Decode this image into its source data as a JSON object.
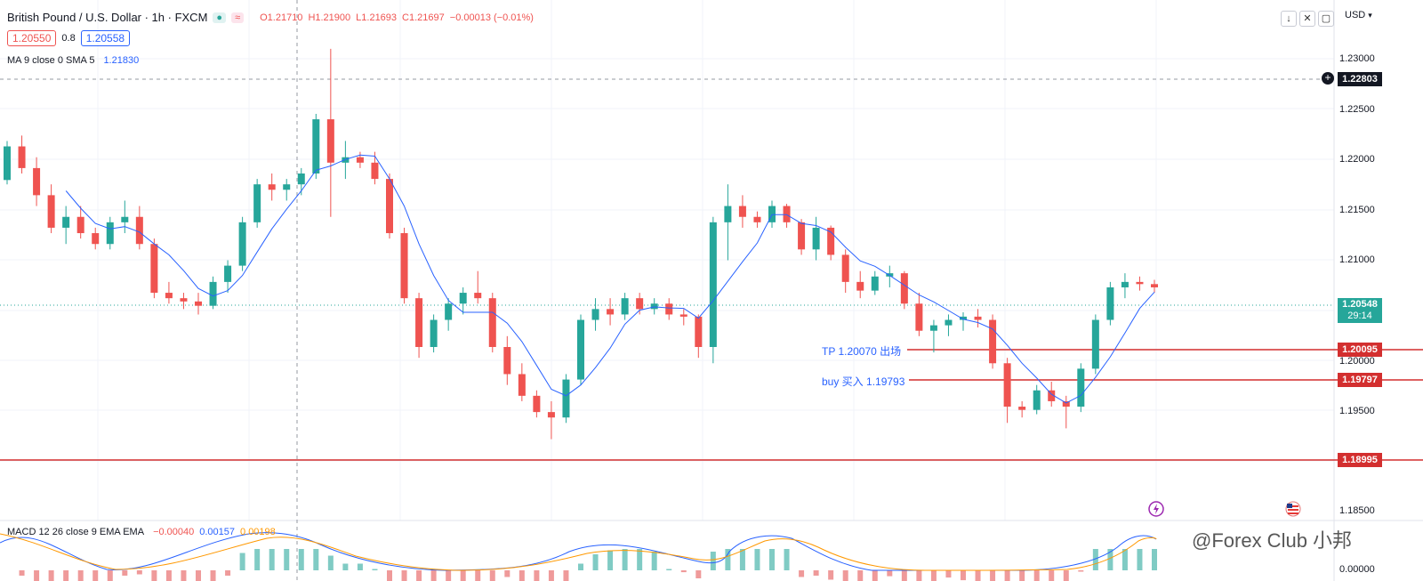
{
  "header": {
    "symbol": "British Pound / U.S. Dollar · 1h · FXCM",
    "ohlc_open": "O1.21710",
    "ohlc_high": "H1.21900",
    "ohlc_low": "L1.21693",
    "ohlc_close": "C1.21697",
    "ohlc_change": "−0.00013 (−0.01%)",
    "bid": "1.20550",
    "spread": "0.8",
    "ask": "1.20558",
    "currency": "USD"
  },
  "indicators": {
    "ma_label": "MA 9 close 0 SMA 5",
    "ma_value": "1.21830",
    "macd_label": "MACD 12 26 close 9 EMA EMA",
    "macd_hist": "−0.00040",
    "macd_line": "0.00157",
    "macd_signal": "0.00198"
  },
  "price_axis": {
    "ticks": [
      "1.23000",
      "1.22500",
      "1.22000",
      "1.21500",
      "1.21000",
      "1.20000",
      "1.19500",
      "1.18500"
    ],
    "macd_tick": "0.00000"
  },
  "tags": {
    "crosshair": "1.22803",
    "last_price": "1.20548",
    "countdown": "29:14",
    "tp_line": "1.20095",
    "buy_line": "1.19797",
    "low_line": "1.18995"
  },
  "annotations": {
    "tp": "TP 1.20070 出场",
    "buy": "buy 买入 1.19793"
  },
  "watermark": "@Forex Club 小邦",
  "colors": {
    "up": "#26a69a",
    "down": "#ef5350",
    "ma": "#2962ff",
    "signal": "#ff9800",
    "hline": "#d32f2f"
  },
  "chart_data": {
    "type": "candlestick",
    "series": [
      {
        "name": "GBP/USD 1h",
        "ohlc": [
          [
            1.2154,
            1.219,
            1.215,
            1.2185
          ],
          [
            1.2185,
            1.2195,
            1.216,
            1.2165
          ],
          [
            1.2165,
            1.2175,
            1.213,
            1.214
          ],
          [
            1.214,
            1.215,
            1.2105,
            1.211
          ],
          [
            1.211,
            1.213,
            1.2095,
            1.212
          ],
          [
            1.212,
            1.213,
            1.21,
            1.2105
          ],
          [
            1.2105,
            1.211,
            1.209,
            1.2095
          ],
          [
            1.2095,
            1.212,
            1.209,
            1.2115
          ],
          [
            1.2115,
            1.2135,
            1.2105,
            1.212
          ],
          [
            1.212,
            1.213,
            1.209,
            1.2095
          ],
          [
            1.2095,
            1.21,
            1.2045,
            1.205
          ],
          [
            1.205,
            1.206,
            1.204,
            1.2045
          ],
          [
            1.2045,
            1.205,
            1.2035,
            1.2042
          ],
          [
            1.2042,
            1.205,
            1.203,
            1.2038
          ],
          [
            1.2038,
            1.2065,
            1.2035,
            1.206
          ],
          [
            1.206,
            1.208,
            1.205,
            1.2075
          ],
          [
            1.2075,
            1.212,
            1.207,
            1.2115
          ],
          [
            1.2115,
            1.2155,
            1.211,
            1.215
          ],
          [
            1.215,
            1.216,
            1.2135,
            1.2145
          ],
          [
            1.2145,
            1.2155,
            1.2135,
            1.215
          ],
          [
            1.215,
            1.2165,
            1.214,
            1.216
          ],
          [
            1.216,
            1.2215,
            1.2155,
            1.221
          ],
          [
            1.221,
            1.2275,
            1.212,
            1.217
          ],
          [
            1.217,
            1.219,
            1.2155,
            1.2175
          ],
          [
            1.2175,
            1.218,
            1.2165,
            1.217
          ],
          [
            1.217,
            1.218,
            1.215,
            1.2155
          ],
          [
            1.2155,
            1.216,
            1.21,
            1.2105
          ],
          [
            1.2105,
            1.211,
            1.204,
            1.2045
          ],
          [
            1.2045,
            1.205,
            1.199,
            1.2
          ],
          [
            1.2,
            1.203,
            1.1995,
            1.2025
          ],
          [
            1.2025,
            1.2045,
            1.2015,
            1.204
          ],
          [
            1.204,
            1.2055,
            1.203,
            1.205
          ],
          [
            1.205,
            1.207,
            1.204,
            1.2045
          ],
          [
            1.2045,
            1.205,
            1.1995,
            1.2
          ],
          [
            1.2,
            1.201,
            1.1965,
            1.1975
          ],
          [
            1.1975,
            1.1985,
            1.195,
            1.1955
          ],
          [
            1.1955,
            1.196,
            1.1935,
            1.194
          ],
          [
            1.194,
            1.195,
            1.1915,
            1.1935
          ],
          [
            1.1935,
            1.1975,
            1.193,
            1.197
          ],
          [
            1.197,
            1.203,
            1.1965,
            1.2025
          ],
          [
            1.2025,
            1.2045,
            1.2015,
            1.2035
          ],
          [
            1.2035,
            1.2045,
            1.202,
            1.203
          ],
          [
            1.203,
            1.205,
            1.2025,
            1.2045
          ],
          [
            1.2045,
            1.205,
            1.203,
            1.2035
          ],
          [
            1.2035,
            1.2045,
            1.203,
            1.204
          ],
          [
            1.204,
            1.2045,
            1.2025,
            1.203
          ],
          [
            1.203,
            1.2035,
            1.202,
            1.2028
          ],
          [
            1.2028,
            1.203,
            1.199,
            1.2
          ],
          [
            1.2,
            1.212,
            1.1985,
            1.2115
          ],
          [
            1.2115,
            1.215,
            1.208,
            1.213
          ],
          [
            1.213,
            1.214,
            1.211,
            1.212
          ],
          [
            1.212,
            1.2125,
            1.211,
            1.2115
          ],
          [
            1.2115,
            1.2135,
            1.211,
            1.213
          ],
          [
            1.213,
            1.2132,
            1.211,
            1.2115
          ],
          [
            1.2115,
            1.2118,
            1.2085,
            1.209
          ],
          [
            1.209,
            1.212,
            1.208,
            1.211
          ],
          [
            1.211,
            1.2112,
            1.208,
            1.2085
          ],
          [
            1.2085,
            1.209,
            1.205,
            1.206
          ],
          [
            1.206,
            1.207,
            1.2045,
            1.2052
          ],
          [
            1.2052,
            1.207,
            1.2048,
            1.2065
          ],
          [
            1.2065,
            1.2075,
            1.2055,
            1.2068
          ],
          [
            1.2068,
            1.207,
            1.2035,
            1.204
          ],
          [
            1.204,
            1.205,
            1.201,
            1.2015
          ],
          [
            1.2015,
            1.2025,
            1.1995,
            1.202
          ],
          [
            1.202,
            1.203,
            1.201,
            1.2025
          ],
          [
            1.2025,
            1.2032,
            1.2015,
            1.2028
          ],
          [
            1.2028,
            1.2035,
            1.2018,
            1.2025
          ],
          [
            1.2025,
            1.203,
            1.198,
            1.1985
          ],
          [
            1.1985,
            1.199,
            1.193,
            1.1945
          ],
          [
            1.1945,
            1.195,
            1.1935,
            1.1942
          ],
          [
            1.1942,
            1.1965,
            1.1938,
            1.196
          ],
          [
            1.196,
            1.1968,
            1.1945,
            1.195
          ],
          [
            1.195,
            1.1955,
            1.1925,
            1.1945
          ],
          [
            1.1945,
            1.1985,
            1.194,
            1.198
          ],
          [
            1.198,
            1.203,
            1.1975,
            1.2025
          ],
          [
            1.2025,
            1.206,
            1.202,
            1.2055
          ],
          [
            1.2055,
            1.2068,
            1.2045,
            1.206
          ],
          [
            1.206,
            1.2065,
            1.2052,
            1.2058
          ],
          [
            1.2058,
            1.2062,
            1.205,
            1.2055
          ]
        ]
      }
    ],
    "y_range": [
      1.184,
      1.232
    ]
  }
}
